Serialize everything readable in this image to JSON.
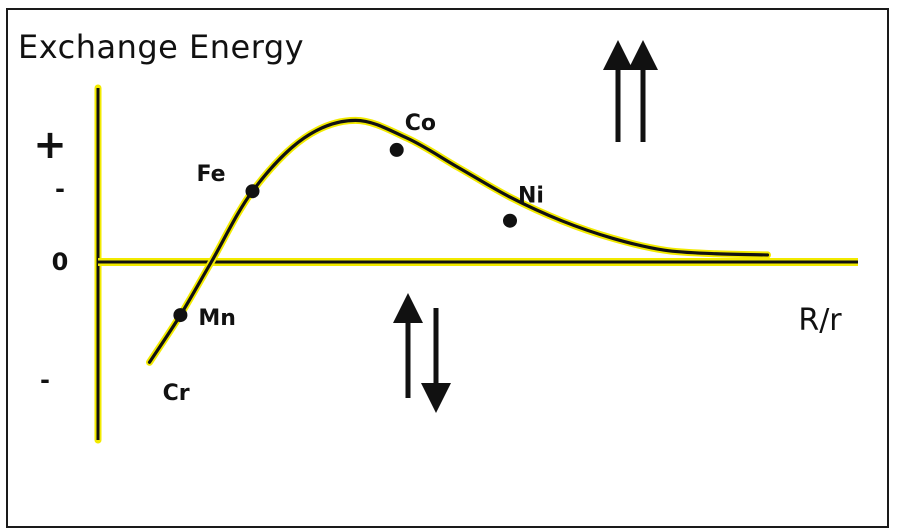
{
  "chart_data": {
    "type": "line",
    "title": "Exchange Energy",
    "xlabel": "R/r",
    "ylabel": "",
    "y_ticks": [
      {
        "label": "+",
        "value": 1.0,
        "color": "#cc1100"
      },
      {
        "label": "-",
        "value": 0.62,
        "color": "#cc1100"
      },
      {
        "label": "0",
        "value": 0.0,
        "color": "#111111"
      },
      {
        "label": "-",
        "value": -1.0,
        "color": "#111111"
      }
    ],
    "xlim": [
      1.0,
      8.5
    ],
    "ylim": [
      -1.5,
      1.5
    ],
    "series": [
      {
        "x": [
          1.5,
          1.8,
          2.1,
          2.5,
          3.0,
          3.5,
          4.0,
          4.5,
          5.0,
          5.5,
          6.0,
          6.5,
          7.0,
          7.5
        ],
        "values": [
          -0.85,
          -0.45,
          0.0,
          0.6,
          1.05,
          1.2,
          1.05,
          0.8,
          0.55,
          0.35,
          0.2,
          0.1,
          0.07,
          0.06
        ]
      }
    ],
    "points": [
      {
        "label": "Cr",
        "x": 1.55,
        "y": -0.83,
        "marker": false
      },
      {
        "label": "Mn",
        "x": 1.8,
        "y": -0.45,
        "marker": true
      },
      {
        "label": "Fe",
        "x": 2.5,
        "y": 0.6,
        "marker": true
      },
      {
        "label": "Co",
        "x": 3.9,
        "y": 0.95,
        "marker": true
      },
      {
        "label": "Ni",
        "x": 5.0,
        "y": 0.35,
        "marker": true
      }
    ],
    "annotations": [
      {
        "label": "↑↑",
        "meaning": "parallel spins",
        "x": 6.3,
        "y": 1.2
      },
      {
        "label": "↑↓",
        "meaning": "antiparallel spins",
        "x": 4.2,
        "y": -0.75
      }
    ],
    "grid": false,
    "colors": {
      "curve": "#111111",
      "axis_highlight": "#f2ea00",
      "accent": "#cc1100"
    }
  }
}
